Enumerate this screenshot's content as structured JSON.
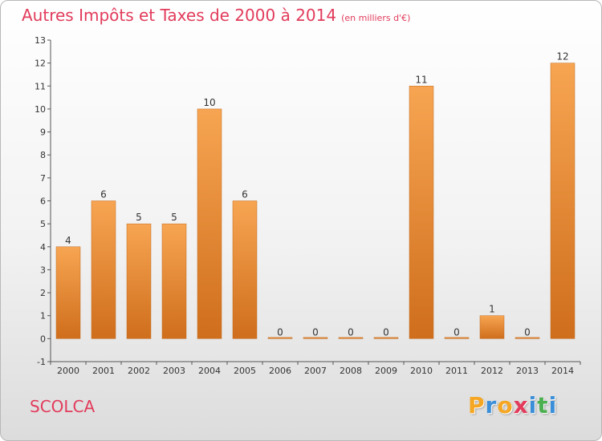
{
  "header": {
    "title": "Autres Impôts et Taxes de 2000 à 2014",
    "subtitle": "(en milliers d'€)"
  },
  "footer": {
    "commune": "SCOLCA",
    "logo_letters": [
      "P",
      "r",
      "o",
      "x",
      "i",
      "t",
      "i"
    ],
    "logo_colors": [
      "#f5a623",
      "#3b8fd8",
      "#f5a623",
      "#e23b5b",
      "#3b8fd8",
      "#4caf50",
      "#3b8fd8"
    ]
  },
  "colors": {
    "bar_top": "#f7a552",
    "bar_bottom": "#cf6e1c",
    "title": "#e23b5b"
  },
  "chart_data": {
    "type": "bar",
    "title": "Autres Impôts et Taxes de 2000 à 2014",
    "subtitle": "(en milliers d'€)",
    "categories": [
      "2000",
      "2001",
      "2002",
      "2003",
      "2004",
      "2005",
      "2006",
      "2007",
      "2008",
      "2009",
      "2010",
      "2011",
      "2012",
      "2013",
      "2014"
    ],
    "values": [
      4,
      6,
      5,
      5,
      10,
      6,
      0,
      0,
      0,
      0,
      11,
      0,
      1,
      0,
      12
    ],
    "value_labels": [
      "4",
      "6",
      "5",
      "5",
      "10",
      "6",
      "0",
      "0",
      "0",
      "0",
      "11",
      "0",
      "1",
      "0",
      "12"
    ],
    "yticks": [
      "-1",
      "0",
      "1",
      "2",
      "3",
      "4",
      "5",
      "6",
      "7",
      "8",
      "9",
      "10",
      "11",
      "12",
      "13"
    ],
    "ylim": [
      -1,
      13
    ],
    "grid": false,
    "legend": "none"
  }
}
